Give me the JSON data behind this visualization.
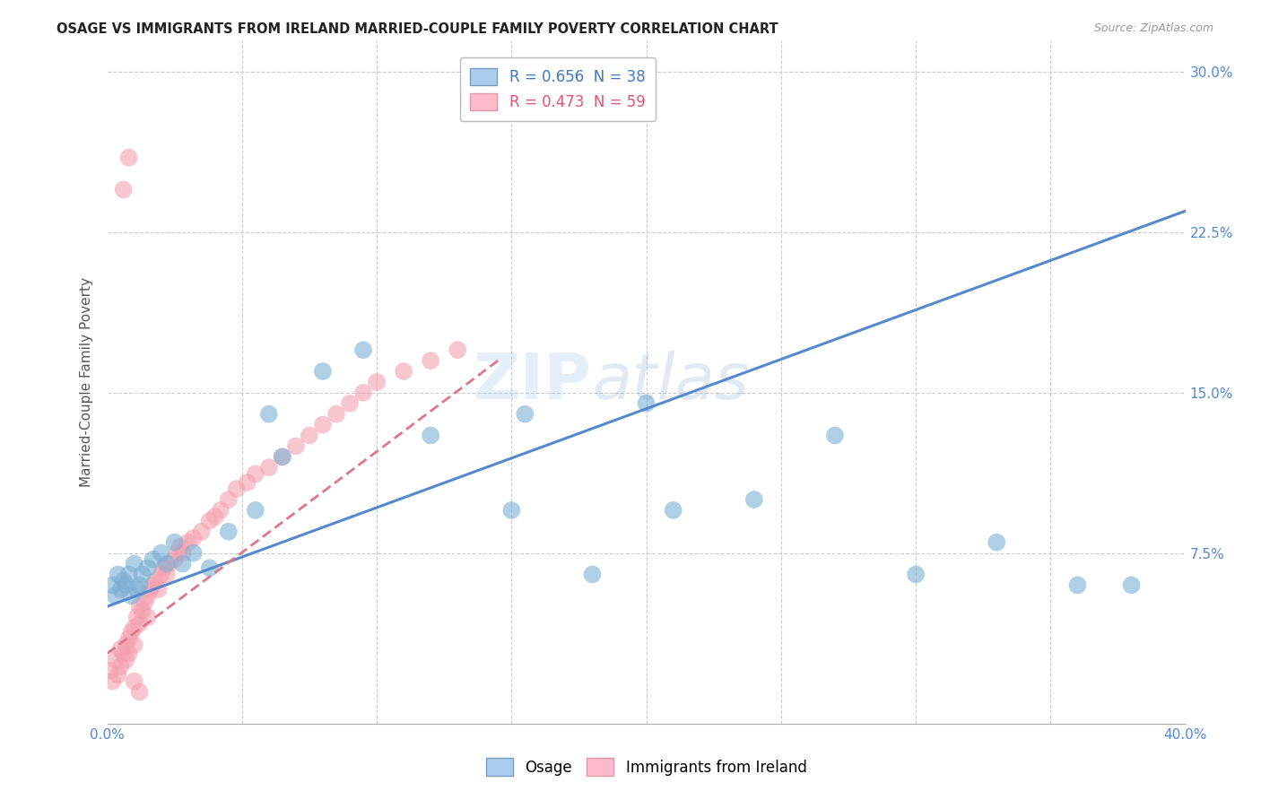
{
  "title": "OSAGE VS IMMIGRANTS FROM IRELAND MARRIED-COUPLE FAMILY POVERTY CORRELATION CHART",
  "source": "Source: ZipAtlas.com",
  "ylabel": "Married-Couple Family Poverty",
  "ytick_labels": [
    "",
    "7.5%",
    "15.0%",
    "22.5%",
    "30.0%"
  ],
  "ytick_values": [
    0.0,
    0.075,
    0.15,
    0.225,
    0.3
  ],
  "xlim": [
    0.0,
    0.4
  ],
  "ylim": [
    -0.005,
    0.315
  ],
  "legend_r1": "R = 0.656  N = 38",
  "legend_r2": "R = 0.473  N = 59",
  "color_osage": "#7BAFD4",
  "color_ireland": "#F4A0B0",
  "osage_x": [
    0.002,
    0.003,
    0.004,
    0.005,
    0.006,
    0.007,
    0.008,
    0.009,
    0.01,
    0.011,
    0.012,
    0.013,
    0.015,
    0.017,
    0.02,
    0.022,
    0.025,
    0.028,
    0.032,
    0.038,
    0.045,
    0.055,
    0.065,
    0.08,
    0.095,
    0.12,
    0.15,
    0.18,
    0.21,
    0.24,
    0.27,
    0.3,
    0.33,
    0.36,
    0.38,
    0.155,
    0.2,
    0.06
  ],
  "osage_y": [
    0.06,
    0.055,
    0.065,
    0.058,
    0.062,
    0.06,
    0.065,
    0.055,
    0.07,
    0.058,
    0.06,
    0.065,
    0.068,
    0.072,
    0.075,
    0.07,
    0.08,
    0.07,
    0.075,
    0.068,
    0.085,
    0.095,
    0.12,
    0.16,
    0.17,
    0.13,
    0.095,
    0.065,
    0.095,
    0.1,
    0.13,
    0.065,
    0.08,
    0.06,
    0.06,
    0.14,
    0.145,
    0.14
  ],
  "ireland_x": [
    0.001,
    0.002,
    0.003,
    0.004,
    0.005,
    0.005,
    0.006,
    0.007,
    0.007,
    0.008,
    0.008,
    0.009,
    0.01,
    0.01,
    0.011,
    0.012,
    0.012,
    0.013,
    0.014,
    0.015,
    0.015,
    0.016,
    0.017,
    0.018,
    0.019,
    0.02,
    0.021,
    0.022,
    0.023,
    0.025,
    0.026,
    0.027,
    0.028,
    0.03,
    0.032,
    0.035,
    0.038,
    0.04,
    0.042,
    0.045,
    0.048,
    0.052,
    0.055,
    0.06,
    0.065,
    0.07,
    0.075,
    0.08,
    0.085,
    0.09,
    0.095,
    0.1,
    0.11,
    0.12,
    0.13,
    0.006,
    0.008,
    0.01,
    0.012
  ],
  "ireland_y": [
    0.02,
    0.015,
    0.025,
    0.018,
    0.022,
    0.03,
    0.028,
    0.032,
    0.025,
    0.035,
    0.028,
    0.038,
    0.04,
    0.032,
    0.045,
    0.042,
    0.05,
    0.048,
    0.052,
    0.055,
    0.045,
    0.058,
    0.06,
    0.062,
    0.058,
    0.065,
    0.068,
    0.065,
    0.07,
    0.072,
    0.075,
    0.078,
    0.075,
    0.08,
    0.082,
    0.085,
    0.09,
    0.092,
    0.095,
    0.1,
    0.105,
    0.108,
    0.112,
    0.115,
    0.12,
    0.125,
    0.13,
    0.135,
    0.14,
    0.145,
    0.15,
    0.155,
    0.16,
    0.165,
    0.17,
    0.245,
    0.26,
    0.015,
    0.01
  ],
  "osage_trend_x": [
    0.0,
    0.4
  ],
  "osage_trend_y": [
    0.05,
    0.235
  ],
  "ireland_trend_x": [
    0.0,
    0.145
  ],
  "ireland_trend_y": [
    0.028,
    0.165
  ]
}
